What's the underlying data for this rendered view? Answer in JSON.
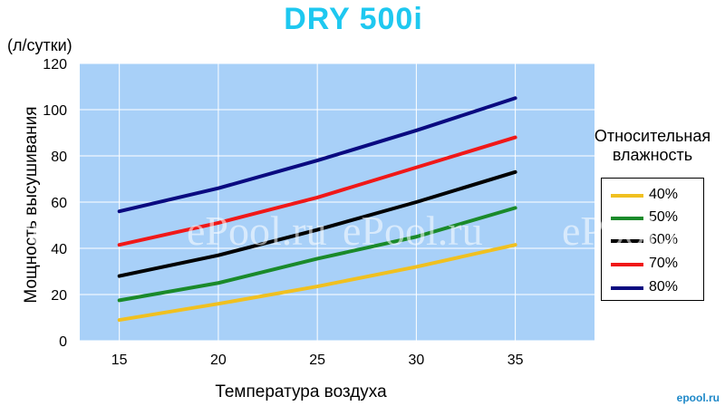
{
  "chart_data": {
    "type": "line",
    "title": "DRY 500i",
    "title_color": "#1ec8f0",
    "unit_label": "(л/сутки)",
    "xlabel": "Температура воздуха",
    "ylabel": "Мощность высушивания",
    "x": [
      15,
      20,
      25,
      30,
      35
    ],
    "xlim": [
      13,
      39
    ],
    "ylim": [
      0,
      120
    ],
    "yticks": [
      0,
      20,
      40,
      60,
      80,
      100,
      120
    ],
    "grid": true,
    "plot_background": "#a8d0f8",
    "legend_title": "Относительная влажность",
    "legend_position": "right",
    "series": [
      {
        "name": "40%",
        "color": "#f0c020",
        "values": [
          9,
          16,
          23.5,
          32,
          41.5
        ]
      },
      {
        "name": "50%",
        "color": "#1a8a2a",
        "values": [
          17.5,
          25,
          35.5,
          45,
          57.5
        ]
      },
      {
        "name": "60%",
        "color": "#000000",
        "values": [
          28,
          37,
          48,
          60,
          73
        ]
      },
      {
        "name": "70%",
        "color": "#f01818",
        "values": [
          41.5,
          51,
          62,
          75,
          88
        ]
      },
      {
        "name": "80%",
        "color": "#0a0a80",
        "values": [
          56,
          66,
          78,
          91,
          105
        ]
      }
    ]
  },
  "watermarks": [
    "l.ru",
    "ePool.ru",
    "ePool.ru",
    "ePool.ru"
  ],
  "corner_watermark": "epool.ru"
}
